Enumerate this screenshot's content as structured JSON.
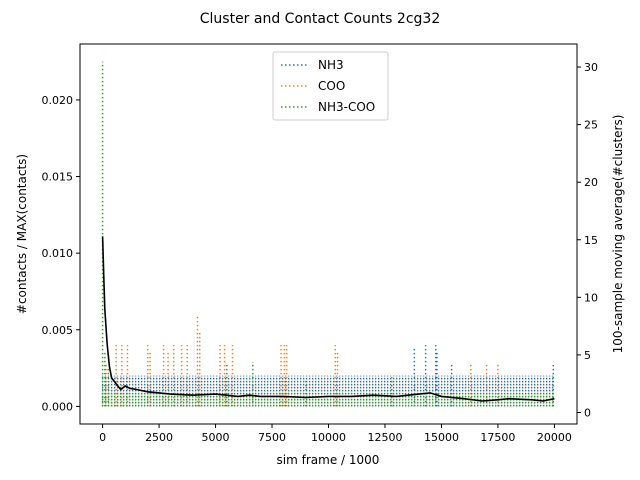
{
  "chart_data": {
    "type": "line",
    "title": "Cluster and Contact Counts 2cg32",
    "xlabel": "sim frame / 1000",
    "ylabel": "#contacts / MAX(contacts)",
    "ylabel_right": "100-sample moving average(#clusters)",
    "xlim": [
      -1000,
      21000
    ],
    "ylim": [
      -0.00115,
      0.02365
    ],
    "ylim_right": [
      -1.0,
      32.0
    ],
    "xticks": [
      0,
      2500,
      5000,
      7500,
      10000,
      12500,
      15000,
      17500,
      20000
    ],
    "xtick_labels": [
      "0",
      "2500",
      "5000",
      "7500",
      "10000",
      "12500",
      "15000",
      "17500",
      "20000"
    ],
    "yticks": [
      0.0,
      0.005,
      0.01,
      0.015,
      0.02
    ],
    "ytick_labels": [
      "0.000",
      "0.005",
      "0.010",
      "0.015",
      "0.020"
    ],
    "yticks_right": [
      0,
      5,
      10,
      15,
      20,
      25,
      30
    ],
    "ytick_labels_right": [
      "0",
      "5",
      "10",
      "15",
      "20",
      "25",
      "30"
    ],
    "grid": false,
    "legend_position": "top-center",
    "series": [
      {
        "name": "NH3",
        "style": "dotted",
        "color": "#1f77b4",
        "axis": "left",
        "baseline": 0.002,
        "x_range": [
          0,
          20000
        ],
        "spikes": [
          {
            "x": 13800,
            "y": 0.0038
          },
          {
            "x": 14300,
            "y": 0.004
          },
          {
            "x": 14750,
            "y": 0.004
          },
          {
            "x": 14800,
            "y": 0.0035
          },
          {
            "x": 15450,
            "y": 0.0027
          },
          {
            "x": 19950,
            "y": 0.0027
          }
        ]
      },
      {
        "name": "COO",
        "style": "dotted",
        "color": "#ff7f0e",
        "axis": "left",
        "baseline": 0.002,
        "x_range": [
          0,
          20000
        ],
        "spikes": [
          {
            "x": 150,
            "y": 0.0028
          },
          {
            "x": 600,
            "y": 0.004
          },
          {
            "x": 850,
            "y": 0.004
          },
          {
            "x": 1100,
            "y": 0.004
          },
          {
            "x": 2000,
            "y": 0.004
          },
          {
            "x": 2100,
            "y": 0.0035
          },
          {
            "x": 2700,
            "y": 0.004
          },
          {
            "x": 2900,
            "y": 0.0035
          },
          {
            "x": 3150,
            "y": 0.004
          },
          {
            "x": 3500,
            "y": 0.004
          },
          {
            "x": 3750,
            "y": 0.004
          },
          {
            "x": 4200,
            "y": 0.006
          },
          {
            "x": 4300,
            "y": 0.0048
          },
          {
            "x": 5200,
            "y": 0.004
          },
          {
            "x": 5400,
            "y": 0.004
          },
          {
            "x": 5750,
            "y": 0.004
          },
          {
            "x": 7900,
            "y": 0.004
          },
          {
            "x": 8050,
            "y": 0.004
          },
          {
            "x": 8150,
            "y": 0.004
          },
          {
            "x": 10300,
            "y": 0.004
          },
          {
            "x": 10400,
            "y": 0.0035
          },
          {
            "x": 16300,
            "y": 0.0028
          },
          {
            "x": 17000,
            "y": 0.0028
          },
          {
            "x": 17500,
            "y": 0.0028
          }
        ]
      },
      {
        "name": "NH3-COO",
        "style": "dotted",
        "color": "#2ca02c",
        "axis": "left",
        "baseline": 0.001,
        "x_range": [
          0,
          20000
        ],
        "spikes": [
          {
            "x": 0,
            "y": 0.0225
          },
          {
            "x": 100,
            "y": 0.0035
          },
          {
            "x": 250,
            "y": 0.0025
          },
          {
            "x": 5500,
            "y": 0.0027
          },
          {
            "x": 6650,
            "y": 0.0029
          },
          {
            "x": 9000,
            "y": 0.0018
          },
          {
            "x": 12800,
            "y": 0.0019
          }
        ]
      },
      {
        "name": "",
        "style": "solid",
        "color": "#000000",
        "axis": "right",
        "x": [
          0,
          50,
          100,
          200,
          300,
          400,
          600,
          800,
          1000,
          1200,
          1500,
          2000,
          2500,
          3000,
          4000,
          5000,
          6000,
          6500,
          7000,
          8000,
          9000,
          10000,
          11000,
          12000,
          13000,
          14000,
          14500,
          15000,
          16000,
          16800,
          17500,
          18000,
          19000,
          19500,
          20000
        ],
        "values": [
          15.3,
          12.0,
          9.0,
          6.0,
          4.0,
          3.0,
          2.5,
          2.0,
          2.3,
          2.1,
          2.0,
          1.8,
          1.7,
          1.6,
          1.5,
          1.6,
          1.4,
          1.5,
          1.4,
          1.4,
          1.3,
          1.4,
          1.4,
          1.5,
          1.4,
          1.6,
          1.7,
          1.4,
          1.2,
          1.0,
          1.1,
          1.2,
          1.1,
          1.0,
          1.2
        ]
      }
    ]
  }
}
